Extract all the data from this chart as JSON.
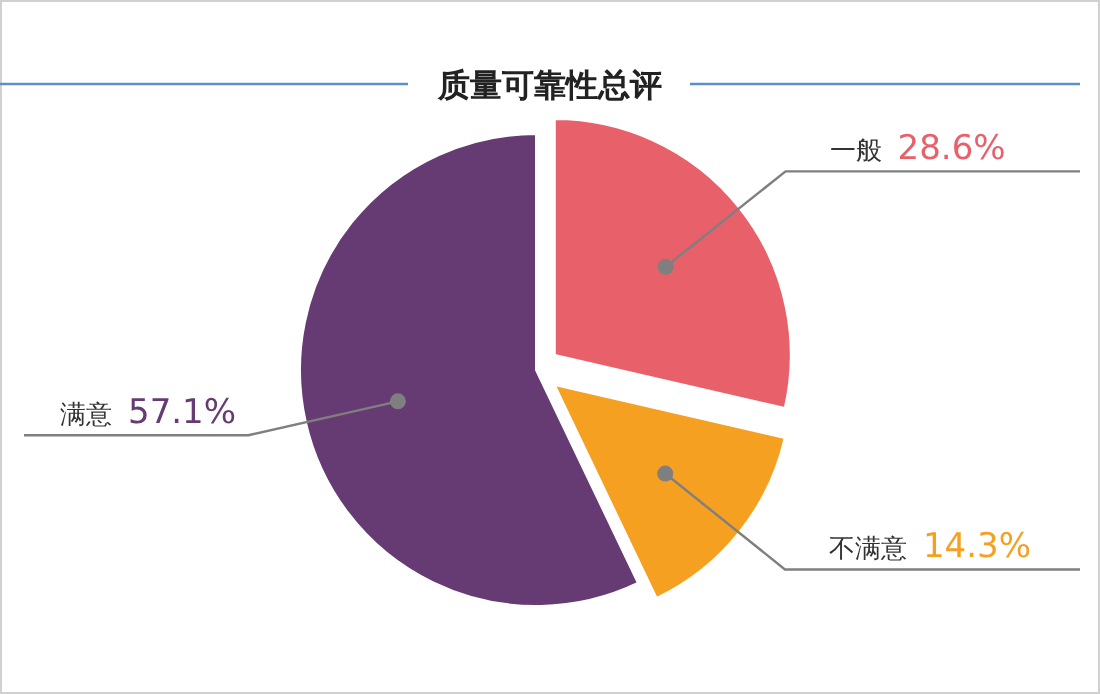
{
  "chart_data": {
    "type": "pie",
    "title": "质量可靠性总评",
    "categories": [
      "一般",
      "不满意",
      "满意"
    ],
    "values": [
      28.6,
      14.3,
      57.1
    ],
    "value_labels": [
      "28.6%",
      "14.3%",
      "57.1%"
    ],
    "colors": [
      "#e8606a",
      "#f5a020",
      "#663a73"
    ]
  }
}
